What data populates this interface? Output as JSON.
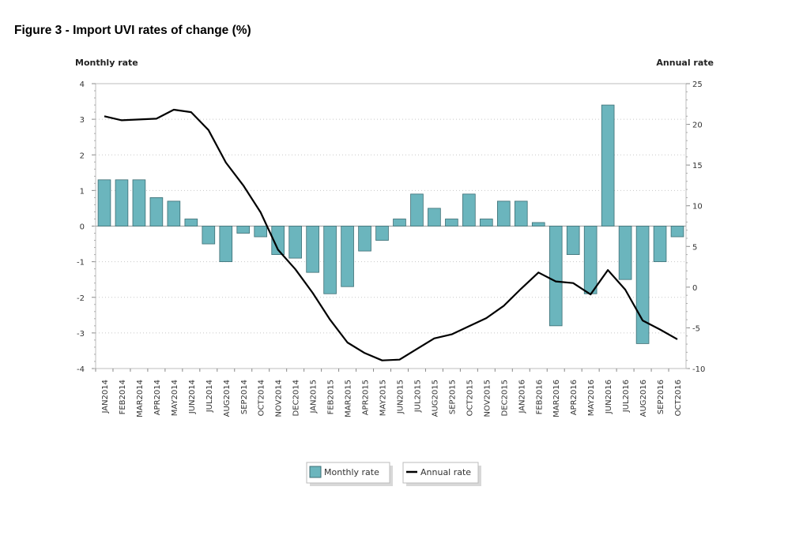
{
  "figure_title": "Figure 3 - Import UVI rates of change (%)",
  "chart_data": {
    "type": "bar+line",
    "title": "Figure 3 - Import UVI rates of change (%)",
    "y_left_label": "Monthly rate",
    "y_right_label": "Annual rate",
    "y_left_lim": [
      -4,
      4
    ],
    "y_left_ticks": [
      -4,
      -3,
      -2,
      -1,
      0,
      1,
      2,
      3,
      4
    ],
    "y_right_lim": [
      -10,
      25
    ],
    "y_right_ticks": [
      -10,
      -5,
      0,
      5,
      10,
      15,
      20,
      25
    ],
    "categories": [
      "JAN2014",
      "FEB2014",
      "MAR2014",
      "APR2014",
      "MAY2014",
      "JUN2014",
      "JUL2014",
      "AUG2014",
      "SEP2014",
      "OCT2014",
      "NOV2014",
      "DEC2014",
      "JAN2015",
      "FEB2015",
      "MAR2015",
      "APR2015",
      "MAY2015",
      "JUN2015",
      "JUL2015",
      "AUG2015",
      "SEP2015",
      "OCT2015",
      "NOV2015",
      "DEC2015",
      "JAN2016",
      "FEB2016",
      "MAR2016",
      "APR2016",
      "MAY2016",
      "JUN2016",
      "JUL2016",
      "AUG2016",
      "SEP2016",
      "OCT2016"
    ],
    "series": [
      {
        "name": "Monthly rate",
        "type": "bar",
        "axis": "left",
        "color": "#6bb5bd",
        "values": [
          1.3,
          1.3,
          1.3,
          0.8,
          0.7,
          0.2,
          -0.5,
          -1.0,
          -0.2,
          -0.3,
          -0.8,
          -0.9,
          -1.3,
          -1.9,
          -1.7,
          -0.7,
          -0.4,
          0.2,
          0.9,
          0.5,
          0.2,
          0.9,
          0.2,
          0.7,
          0.7,
          0.1,
          -2.8,
          -0.8,
          -1.9,
          3.4,
          -1.5,
          -3.3,
          -1.0,
          -0.3
        ]
      },
      {
        "name": "Annual rate",
        "type": "line",
        "axis": "right",
        "color": "#000000",
        "values": [
          21.0,
          20.5,
          20.6,
          20.7,
          21.8,
          21.5,
          19.3,
          15.3,
          12.5,
          9.2,
          4.6,
          2.2,
          -0.7,
          -4.0,
          -6.8,
          -8.1,
          -9.0,
          -8.9,
          -7.6,
          -6.3,
          -5.8,
          -4.8,
          -3.8,
          -2.3,
          -0.2,
          1.8,
          0.7,
          0.5,
          -0.9,
          2.1,
          -0.3,
          -4.1,
          -5.2,
          -6.4
        ]
      }
    ],
    "legend_position": "bottom-center",
    "grid": true
  },
  "colors": {
    "bar_fill": "#6bb5bd",
    "bar_stroke": "#3d6e74",
    "line": "#000000",
    "grid": "#c8c8c8"
  }
}
